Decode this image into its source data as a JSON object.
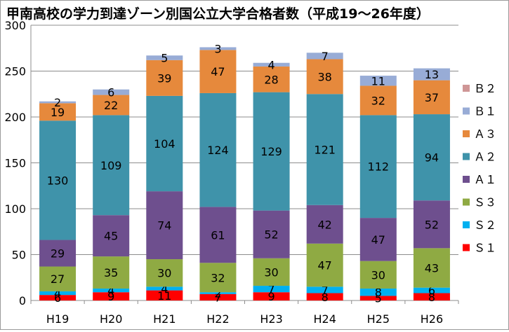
{
  "chart_data": {
    "type": "bar",
    "stacked": true,
    "title": "甲南高校の学力到達ゾーン別国公立大学合格者数（平成19〜26年度）",
    "xlabel": "",
    "ylabel": "",
    "ylim": [
      0,
      300
    ],
    "yticks": [
      0,
      50,
      100,
      150,
      200,
      250,
      300
    ],
    "grid": true,
    "legend_position": "right",
    "categories": [
      "H19",
      "H20",
      "H21",
      "H22",
      "H23",
      "H24",
      "H25",
      "H26"
    ],
    "series": [
      {
        "name": "Ｓ１",
        "color": "#ff0000",
        "values": [
          6,
          9,
          11,
          7,
          9,
          8,
          5,
          8
        ],
        "labels": [
          "6",
          "9",
          "11",
          "7",
          "9",
          "8",
          "5",
          "8"
        ]
      },
      {
        "name": "Ｓ２",
        "color": "#00b0f0",
        "values": [
          4,
          4,
          4,
          2,
          7,
          7,
          8,
          6
        ],
        "labels": [
          "4",
          "4",
          "4",
          "2",
          "7",
          "7",
          "8",
          "6"
        ]
      },
      {
        "name": "Ｓ３",
        "color": "#8faa43",
        "values": [
          27,
          35,
          30,
          32,
          30,
          47,
          30,
          43
        ],
        "labels": [
          "27",
          "35",
          "30",
          "32",
          "30",
          "47",
          "30",
          "43"
        ]
      },
      {
        "name": "Ａ１",
        "color": "#6e4f8e",
        "values": [
          29,
          45,
          74,
          61,
          52,
          42,
          47,
          52
        ],
        "labels": [
          "29",
          "45",
          "74",
          "61",
          "52",
          "42",
          "47",
          "52"
        ]
      },
      {
        "name": "Ａ２",
        "color": "#3f93aa",
        "values": [
          130,
          109,
          104,
          124,
          129,
          121,
          112,
          94
        ],
        "labels": [
          "130",
          "109",
          "104",
          "124",
          "129",
          "121",
          "112",
          "94"
        ]
      },
      {
        "name": "Ａ３",
        "color": "#e6893c",
        "values": [
          19,
          22,
          39,
          47,
          28,
          38,
          32,
          37
        ],
        "labels": [
          "19",
          "22",
          "39",
          "47",
          "28",
          "38",
          "32",
          "37"
        ]
      },
      {
        "name": "Ｂ１",
        "color": "#98acd6",
        "values": [
          2,
          6,
          5,
          3,
          4,
          7,
          11,
          13
        ],
        "labels": [
          "2",
          "6",
          "5",
          "3",
          "4",
          "7",
          "11",
          "13"
        ]
      },
      {
        "name": "Ｂ２",
        "color": "#cf9696",
        "values": [
          0,
          0,
          0,
          0,
          0,
          0,
          0,
          0
        ],
        "labels": [
          "",
          "",
          "",
          "",
          "",
          "",
          "",
          ""
        ]
      }
    ]
  }
}
